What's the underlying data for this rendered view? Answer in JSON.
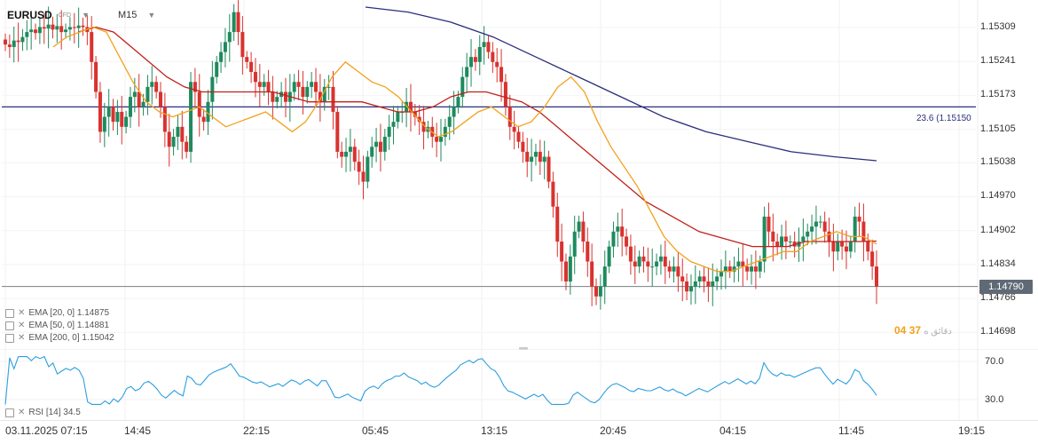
{
  "toolbar": {
    "symbol": "EURUSD",
    "symbol_type": "CFD",
    "timeframe": "M15"
  },
  "price_axis": {
    "labels": [
      "1.15309",
      "1.15241",
      "1.15173",
      "1.15105",
      "1.15038",
      "1.14970",
      "1.14902",
      "1.14834",
      "1.14766",
      "1.14698"
    ],
    "current_price": "1.14790",
    "current_price_color": "#606a75"
  },
  "fib_level": {
    "label": "23.6 (1.15150",
    "value": 1.1515,
    "color": "#2b2f7a"
  },
  "countdown": {
    "minutes": "04",
    "seconds": "37",
    "unit_text": "ﺩﻗﺎﺋﻖ ﻩ"
  },
  "legend": {
    "ema20": "EMA [20, 0]  1.14875",
    "ema50": "EMA [50, 0]  1.14881",
    "ema200": "EMA [200, 0]  1.15042",
    "rsi": "RSI [14]  34.5"
  },
  "rsi_axis": {
    "upper": "70.0",
    "lower": "30.0"
  },
  "time_axis": {
    "labels": [
      "03.11.2025  07:15",
      "14:45",
      "22:15",
      "05:45",
      "13:15",
      "20:45",
      "04:15",
      "11:45",
      "19:15"
    ]
  },
  "colors": {
    "up": "#1e8a5e",
    "down": "#d9322f",
    "ema20": "#f2a11b",
    "ema50": "#c0211b",
    "ema200": "#2b2f7a",
    "rsi": "#2c9ee0"
  },
  "chart_data": {
    "type": "candlestick",
    "symbol": "EURUSD",
    "timeframe": "M15",
    "ylim": [
      1.1467,
      1.1535
    ],
    "price_ticks": [
      1.15309,
      1.15241,
      1.15173,
      1.15105,
      1.15038,
      1.1497,
      1.14902,
      1.14834,
      1.14766,
      1.14698
    ],
    "horizontal_lines": [
      {
        "name": "23.6 (1.15150",
        "value": 1.1515
      },
      {
        "name": "current",
        "value": 1.1479
      }
    ],
    "close_series": [
      1.15275,
      1.1527,
      1.15283,
      1.1528,
      1.1529,
      1.153,
      1.15305,
      1.15298,
      1.1531,
      1.15307,
      1.15315,
      1.15305,
      1.15312,
      1.153,
      1.15305,
      1.1531,
      1.15308,
      1.15313,
      1.1531,
      1.153,
      1.1524,
      1.1518,
      1.151,
      1.1513,
      1.1515,
      1.1512,
      1.1514,
      1.1511,
      1.1513,
      1.1517,
      1.1518,
      1.1515,
      1.1516,
      1.1519,
      1.152,
      1.1518,
      1.1515,
      1.151,
      1.1507,
      1.1509,
      1.1511,
      1.1508,
      1.1506,
      1.152,
      1.1518,
      1.1513,
      1.1512,
      1.1516,
      1.1521,
      1.1524,
      1.1526,
      1.1528,
      1.153,
      1.1534,
      1.153,
      1.1525,
      1.1524,
      1.1522,
      1.152,
      1.1519,
      1.152,
      1.1518,
      1.1516,
      1.1517,
      1.1518,
      1.1516,
      1.1518,
      1.152,
      1.1519,
      1.1517,
      1.1519,
      1.152,
      1.1518,
      1.1516,
      1.1519,
      1.1519,
      1.1514,
      1.1506,
      1.1505,
      1.1506,
      1.1507,
      1.1504,
      1.1502,
      1.15,
      1.1505,
      1.1507,
      1.1508,
      1.1506,
      1.1509,
      1.1511,
      1.1512,
      1.1514,
      1.1514,
      1.1516,
      1.1514,
      1.1513,
      1.1512,
      1.151,
      1.1511,
      1.1509,
      1.1508,
      1.1509,
      1.1511,
      1.1513,
      1.1515,
      1.1517,
      1.1521,
      1.1523,
      1.1525,
      1.1524,
      1.1527,
      1.1528,
      1.1526,
      1.1524,
      1.1523,
      1.152,
      1.1515,
      1.1511,
      1.151,
      1.1508,
      1.1506,
      1.1504,
      1.1505,
      1.1506,
      1.1504,
      1.1505,
      1.15,
      1.1495,
      1.1488,
      1.1484,
      1.148,
      1.1485,
      1.149,
      1.1492,
      1.1488,
      1.1484,
      1.1479,
      1.1477,
      1.1479,
      1.1483,
      1.1487,
      1.149,
      1.1491,
      1.1489,
      1.1487,
      1.1484,
      1.1483,
      1.1485,
      1.1484,
      1.1483,
      1.1483,
      1.1484,
      1.1485,
      1.1483,
      1.1482,
      1.1483,
      1.1481,
      1.148,
      1.1478,
      1.1479,
      1.148,
      1.1481,
      1.148,
      1.1479,
      1.148,
      1.1481,
      1.1482,
      1.1483,
      1.1482,
      1.1483,
      1.1484,
      1.1483,
      1.1482,
      1.1483,
      1.1482,
      1.1484,
      1.1493,
      1.149,
      1.1488,
      1.1487,
      1.1489,
      1.1488,
      1.1488,
      1.1487,
      1.1488,
      1.1489,
      1.149,
      1.1491,
      1.1492,
      1.1492,
      1.149,
      1.1488,
      1.1486,
      1.1488,
      1.1487,
      1.1486,
      1.1488,
      1.1493,
      1.1492,
      1.1488,
      1.1486,
      1.1483,
      1.1479
    ],
    "ema20": [
      1.1527,
      1.1529,
      1.153,
      1.1531,
      1.153,
      1.1525,
      1.152,
      1.1516,
      1.1514,
      1.1513,
      1.1514,
      1.1515,
      1.1513,
      1.1511,
      1.1512,
      1.1513,
      1.1514,
      1.1512,
      1.151,
      1.1512,
      1.1516,
      1.1521,
      1.1524,
      1.1522,
      1.152,
      1.1519,
      1.1517,
      1.1514,
      1.1511,
      1.1509,
      1.151,
      1.1512,
      1.1514,
      1.1515,
      1.1513,
      1.1511,
      1.1512,
      1.1515,
      1.1519,
      1.1521,
      1.1518,
      1.1512,
      1.1507,
      1.1503,
      1.1499,
      1.1494,
      1.1489,
      1.1486,
      1.1484,
      1.1483,
      1.1482,
      1.1482,
      1.1483,
      1.1484,
      1.1485,
      1.1486,
      1.1486,
      1.1488,
      1.1489,
      1.149,
      1.1489,
      1.1489,
      1.14875
    ],
    "ema50": [
      1.153,
      1.1531,
      1.153,
      1.1527,
      1.1524,
      1.1521,
      1.1519,
      1.1518,
      1.1518,
      1.1518,
      1.1518,
      1.1518,
      1.1517,
      1.1516,
      1.1516,
      1.1516,
      1.1516,
      1.1515,
      1.1514,
      1.1514,
      1.1515,
      1.1517,
      1.1518,
      1.1518,
      1.1517,
      1.1516,
      1.1514,
      1.1511,
      1.1508,
      1.1505,
      1.1502,
      1.1499,
      1.1496,
      1.1494,
      1.1492,
      1.149,
      1.1489,
      1.1488,
      1.1487,
      1.1487,
      1.1487,
      1.1488,
      1.1488,
      1.1488,
      1.1488,
      1.14881
    ],
    "ema200": [
      1.1535,
      1.1534,
      1.1532,
      1.1529,
      1.1525,
      1.1521,
      1.1517,
      1.1513,
      1.151,
      1.1508,
      1.1506,
      1.1505,
      1.15042
    ],
    "rsi": {
      "period": 14,
      "last": 34.5,
      "levels": [
        70.0,
        30.0
      ]
    },
    "x_ticks": [
      "03.11.2025  07:15",
      "14:45",
      "22:15",
      "05:45",
      "13:15",
      "20:45",
      "04:15",
      "11:45",
      "19:15"
    ],
    "ylabel": "",
    "grid": true
  }
}
